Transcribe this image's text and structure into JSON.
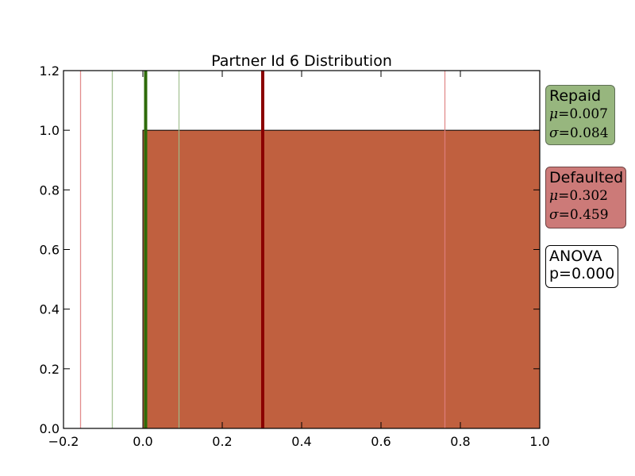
{
  "chart_data": {
    "type": "bar",
    "title": "Partner Id 6 Distribution",
    "xlabel": "",
    "ylabel": "",
    "xlim": [
      -0.2,
      1.0
    ],
    "ylim": [
      0.0,
      1.2
    ],
    "x_ticks": [
      "−0.2",
      "0.0",
      "0.2",
      "0.4",
      "0.6",
      "0.8",
      "1.0"
    ],
    "x_tick_values": [
      -0.2,
      0.0,
      0.2,
      0.4,
      0.6,
      0.8,
      1.0
    ],
    "y_ticks": [
      "0.0",
      "0.2",
      "0.4",
      "0.6",
      "0.8",
      "1.0",
      "1.2"
    ],
    "y_tick_values": [
      0.0,
      0.2,
      0.4,
      0.6,
      0.8,
      1.0,
      1.2
    ],
    "grid": false,
    "bars": [
      {
        "name": "Defaulted",
        "x_start": 0.0,
        "x_end": 1.0,
        "value": 1.0,
        "color": "#c0603f"
      }
    ],
    "vertical_lines": [
      {
        "series": "Defaulted",
        "role": "mean",
        "x": 0.302,
        "color": "#8b0000",
        "weight": "thick"
      },
      {
        "series": "Defaulted",
        "role": "mean-sigma",
        "x": -0.157,
        "color": "#e08080",
        "weight": "thin"
      },
      {
        "series": "Defaulted",
        "role": "mean+sigma",
        "x": 0.761,
        "color": "#e08080",
        "weight": "thin"
      },
      {
        "series": "Repaid",
        "role": "mean",
        "x": 0.007,
        "color": "#2e6b0a",
        "weight": "thick"
      },
      {
        "series": "Repaid",
        "role": "mean-sigma",
        "x": -0.077,
        "color": "#9dbf8c",
        "weight": "thin"
      },
      {
        "series": "Repaid",
        "role": "mean+sigma",
        "x": 0.091,
        "color": "#9dbf8c",
        "weight": "thin"
      }
    ],
    "legend": {
      "placement": "right-outside",
      "entries": [
        {
          "label": "Repaid",
          "mu": "0.007",
          "sigma": "0.084",
          "color": "#97b67e"
        },
        {
          "label": "Defaulted",
          "mu": "0.302",
          "sigma": "0.459",
          "color": "#cc7a78"
        }
      ],
      "anova": {
        "line1": "ANOVA",
        "line2": "p=0.000"
      }
    }
  }
}
